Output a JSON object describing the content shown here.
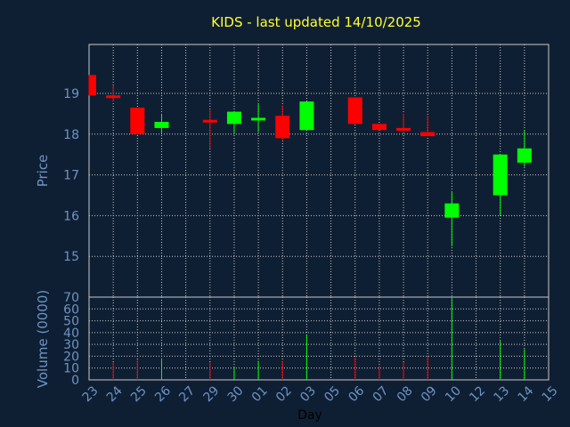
{
  "chart_data": {
    "type": "candlestick",
    "title": "KIDS - last updated 14/10/2025",
    "xlabel": "Day",
    "price_ylabel": "Price",
    "volume_ylabel": "Volume (0000)",
    "x_ticks": [
      "23",
      "24",
      "25",
      "26",
      "27",
      "29",
      "30",
      "01",
      "02",
      "03",
      "05",
      "06",
      "07",
      "08",
      "09",
      "10",
      "12",
      "13",
      "14",
      "15"
    ],
    "price_ticks": [
      15,
      16,
      17,
      18,
      19
    ],
    "price_ylim": [
      14.0,
      20.2
    ],
    "volume_ticks": [
      0,
      10,
      20,
      30,
      40,
      50,
      60,
      70
    ],
    "volume_ylim": [
      0,
      70
    ],
    "grid": true,
    "colors": {
      "up": "#00ff00",
      "down": "#ff0000",
      "title": "#ffff33",
      "axis_text": "#6f93c4",
      "grid": "#c8c8c8",
      "background": "#0f1f33"
    },
    "candles": [
      {
        "day": "23",
        "open": 19.45,
        "high": 19.45,
        "low": 18.95,
        "close": 18.95,
        "volume": 0
      },
      {
        "day": "24",
        "open": 18.95,
        "high": 19.2,
        "low": 18.8,
        "close": 18.9,
        "volume": 15
      },
      {
        "day": "25",
        "open": 18.65,
        "high": 18.65,
        "low": 18.0,
        "close": 18.0,
        "volume": 17
      },
      {
        "day": "26",
        "open": 18.15,
        "high": 18.5,
        "low": 18.0,
        "close": 18.3,
        "volume": 17
      },
      {
        "day": "29",
        "open": 18.35,
        "high": 18.6,
        "low": 17.65,
        "close": 18.3,
        "volume": 15
      },
      {
        "day": "30",
        "open": 18.25,
        "high": 18.55,
        "low": 18.0,
        "close": 18.55,
        "volume": 11
      },
      {
        "day": "01",
        "open": 18.4,
        "high": 18.75,
        "low": 18.05,
        "close": 18.4,
        "volume": 16
      },
      {
        "day": "02",
        "open": 18.45,
        "high": 18.7,
        "low": 17.85,
        "close": 17.9,
        "volume": 16
      },
      {
        "day": "03",
        "open": 18.1,
        "high": 18.8,
        "low": 18.1,
        "close": 18.8,
        "volume": 38
      },
      {
        "day": "06",
        "open": 18.9,
        "high": 18.9,
        "low": 18.25,
        "close": 18.25,
        "volume": 19
      },
      {
        "day": "07",
        "open": 18.25,
        "high": 18.25,
        "low": 18.1,
        "close": 18.1,
        "volume": 12
      },
      {
        "day": "08",
        "open": 18.15,
        "high": 18.5,
        "low": 18.1,
        "close": 18.1,
        "volume": 15
      },
      {
        "day": "09",
        "open": 18.05,
        "high": 18.45,
        "low": 17.95,
        "close": 17.95,
        "volume": 20
      },
      {
        "day": "10",
        "open": 15.95,
        "high": 16.6,
        "low": 15.25,
        "close": 16.3,
        "volume": 70
      },
      {
        "day": "13",
        "open": 16.5,
        "high": 17.5,
        "low": 16.0,
        "close": 17.5,
        "volume": 33
      },
      {
        "day": "14",
        "open": 17.3,
        "high": 18.1,
        "low": 17.2,
        "close": 17.65,
        "volume": 26
      }
    ]
  }
}
